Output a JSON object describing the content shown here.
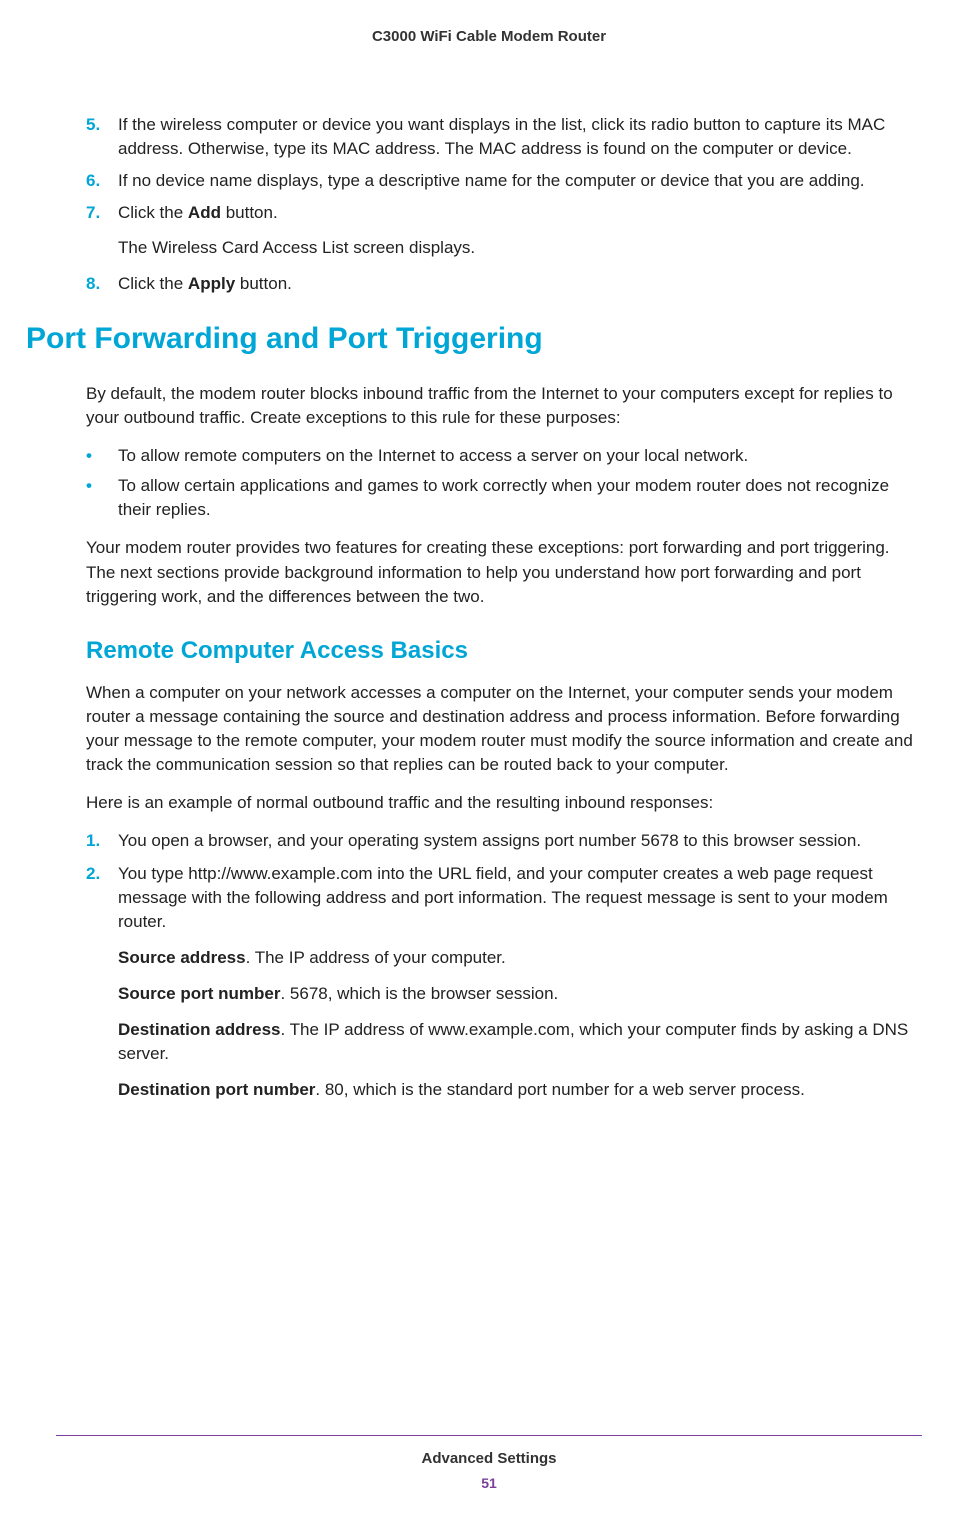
{
  "header": {
    "title": "C3000 WiFi Cable Modem Router"
  },
  "section1": {
    "items": [
      {
        "num": "5.",
        "text": "If the wireless computer or device you want displays in the list, click its radio button to capture its MAC address. Otherwise, type its MAC address. The MAC address is found on the computer or device."
      },
      {
        "num": "6.",
        "text": "If no device name displays, type a descriptive name for the computer or device that you are adding."
      },
      {
        "num": "7.",
        "prefix": "Click the ",
        "bold": "Add",
        "suffix": " button.",
        "subtext": "The Wireless Card Access List screen displays."
      },
      {
        "num": "8.",
        "prefix": "Click the ",
        "bold": "Apply",
        "suffix": " button."
      }
    ]
  },
  "heading1": "Port Forwarding and Port Triggering",
  "para1": "By default, the modem router blocks inbound traffic from the Internet to your computers except for replies to your outbound traffic. Create exceptions to this rule for these purposes:",
  "bullets1": [
    "To allow remote computers on the Internet to access a server on your local network.",
    "To allow certain applications and games to work correctly when your modem router does not recognize their replies."
  ],
  "para2": "Your modem router provides two features for creating these exceptions: port forwarding and port triggering. The next sections provide background information to help you understand how port forwarding and port triggering work, and the differences between the two.",
  "heading2": "Remote Computer Access Basics",
  "para3": "When a computer on your network accesses a computer on the Internet, your computer sends your modem router a message containing the source and destination address and process information. Before forwarding your message to the remote computer, your modem router must modify the source information and create and track the communication session so that replies can be routed back to your computer.",
  "para4": "Here is an example of normal outbound traffic and the resulting inbound responses:",
  "section2": {
    "item1": {
      "num": "1.",
      "text": "You open a browser, and your operating system assigns port number 5678 to this browser session."
    },
    "item2": {
      "num": "2.",
      "text": "You type http://www.example.com into the URL field, and your computer creates a web page request message with the following address and port information. The request message is sent to your modem router."
    },
    "defs": [
      {
        "bold": "Source address",
        "text": ". The IP address of your computer."
      },
      {
        "bold": "Source port number",
        "text": ". 5678, which is the browser session."
      },
      {
        "bold": "Destination address",
        "text": ". The IP address of www.example.com, which your computer finds by asking a DNS server."
      },
      {
        "bold": "Destination port number",
        "text": ". 80, which is the standard port number for a web server process."
      }
    ]
  },
  "footer": {
    "title": "Advanced Settings",
    "page": "51"
  },
  "colors": {
    "accent": "#00a6d6",
    "purple": "#7b3f99",
    "text": "#222222",
    "header_text": "#333333"
  },
  "bullet_char": "•"
}
